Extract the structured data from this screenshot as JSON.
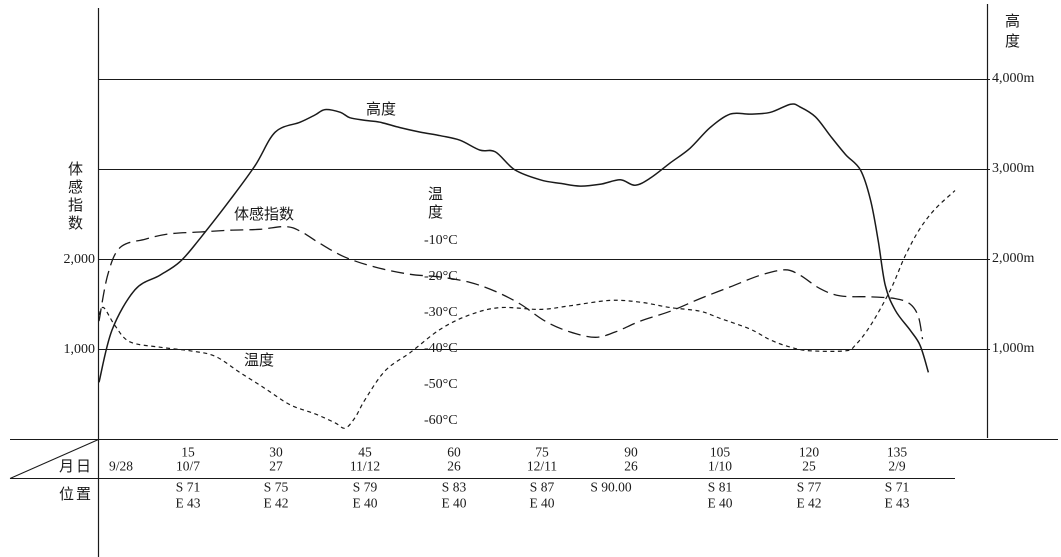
{
  "colors": {
    "ink": "#1a1a1a",
    "background": "#ffffff"
  },
  "chart_data": {
    "type": "line",
    "xlim": [
      0,
      150
    ],
    "axes": {
      "left": {
        "label": "体感指数",
        "ylim": [
          0,
          4800
        ],
        "ticks": [
          {
            "value": 2000,
            "label": "2,000"
          },
          {
            "value": 1000,
            "label": "1,000"
          }
        ]
      },
      "right": {
        "label": "高度",
        "ylim": [
          0,
          4800
        ],
        "grid": true,
        "ticks": [
          {
            "value": 4000,
            "label": "4,000m"
          },
          {
            "value": 3000,
            "label": "3,000m"
          },
          {
            "value": 2000,
            "label": "2,000m"
          },
          {
            "value": 1000,
            "label": "1,000m"
          }
        ]
      },
      "temperature": {
        "label": "温度",
        "ylim": [
          -65,
          55
        ],
        "ticks": [
          {
            "value": -10,
            "label": "-10°C"
          },
          {
            "value": -20,
            "label": "-20°C"
          },
          {
            "value": -30,
            "label": "-30°C"
          },
          {
            "value": -40,
            "label": "-40°C"
          },
          {
            "value": -50,
            "label": "-50°C"
          },
          {
            "value": -60,
            "label": "-60°C"
          }
        ]
      }
    },
    "series": [
      {
        "name": "高度",
        "axis": "right",
        "line": "solid",
        "points": [
          [
            0,
            630
          ],
          [
            2.2,
            1210
          ],
          [
            6.1,
            1660
          ],
          [
            10.3,
            1820
          ],
          [
            13.7,
            1970
          ],
          [
            17.1,
            2230
          ],
          [
            22.2,
            2660
          ],
          [
            26.4,
            3040
          ],
          [
            29.8,
            3410
          ],
          [
            34.0,
            3520
          ],
          [
            36.5,
            3600
          ],
          [
            38.2,
            3660
          ],
          [
            40.8,
            3630
          ],
          [
            42.4,
            3570
          ],
          [
            45.0,
            3540
          ],
          [
            47.5,
            3520
          ],
          [
            50.9,
            3460
          ],
          [
            54.3,
            3410
          ],
          [
            57.7,
            3370
          ],
          [
            61.0,
            3320
          ],
          [
            64.4,
            3210
          ],
          [
            67.0,
            3190
          ],
          [
            70.3,
            2990
          ],
          [
            74.6,
            2880
          ],
          [
            78.0,
            2840
          ],
          [
            81.3,
            2810
          ],
          [
            84.7,
            2830
          ],
          [
            88.1,
            2880
          ],
          [
            90.6,
            2820
          ],
          [
            93.2,
            2900
          ],
          [
            96.6,
            3070
          ],
          [
            99.9,
            3230
          ],
          [
            103.3,
            3460
          ],
          [
            106.7,
            3610
          ],
          [
            110.1,
            3610
          ],
          [
            113.5,
            3630
          ],
          [
            116.9,
            3720
          ],
          [
            118.5,
            3690
          ],
          [
            121.1,
            3580
          ],
          [
            123.6,
            3370
          ],
          [
            126.2,
            3160
          ],
          [
            128.7,
            2990
          ],
          [
            130.4,
            2660
          ],
          [
            131.7,
            2210
          ],
          [
            132.9,
            1710
          ],
          [
            134.6,
            1430
          ],
          [
            137.1,
            1210
          ],
          [
            138.8,
            1040
          ],
          [
            140.2,
            740
          ]
        ]
      },
      {
        "name": "体感指数",
        "axis": "left",
        "line": "long-dash",
        "points": [
          [
            0,
            1310
          ],
          [
            1.5,
            1830
          ],
          [
            3.6,
            2130
          ],
          [
            7.8,
            2220
          ],
          [
            12.0,
            2280
          ],
          [
            17.1,
            2300
          ],
          [
            22.2,
            2320
          ],
          [
            27.2,
            2330
          ],
          [
            31.5,
            2360
          ],
          [
            34.0,
            2310
          ],
          [
            37.4,
            2170
          ],
          [
            41.6,
            2020
          ],
          [
            46.7,
            1910
          ],
          [
            52.6,
            1830
          ],
          [
            57.7,
            1800
          ],
          [
            62.7,
            1740
          ],
          [
            67.0,
            1640
          ],
          [
            71.2,
            1500
          ],
          [
            75.4,
            1310
          ],
          [
            79.6,
            1190
          ],
          [
            83.9,
            1130
          ],
          [
            87.3,
            1190
          ],
          [
            91.5,
            1310
          ],
          [
            96.6,
            1420
          ],
          [
            101.6,
            1560
          ],
          [
            106.7,
            1690
          ],
          [
            111.8,
            1820
          ],
          [
            116.0,
            1880
          ],
          [
            118.5,
            1820
          ],
          [
            121.9,
            1670
          ],
          [
            125.3,
            1590
          ],
          [
            130.4,
            1580
          ],
          [
            134.6,
            1560
          ],
          [
            137.1,
            1500
          ],
          [
            138.5,
            1360
          ],
          [
            139.2,
            1110
          ]
        ]
      },
      {
        "name": "温度",
        "axis": "temperature",
        "line": "short-dash",
        "points": [
          [
            0,
            -30.5
          ],
          [
            0.8,
            -28.5
          ],
          [
            2.7,
            -33.5
          ],
          [
            5.2,
            -38
          ],
          [
            10.3,
            -39.5
          ],
          [
            15.4,
            -40.5
          ],
          [
            19.6,
            -42
          ],
          [
            23.8,
            -46.5
          ],
          [
            28.1,
            -51
          ],
          [
            32.3,
            -55.5
          ],
          [
            36.5,
            -58
          ],
          [
            39.9,
            -60.5
          ],
          [
            41.6,
            -62
          ],
          [
            43.3,
            -59
          ],
          [
            45.0,
            -54
          ],
          [
            48.4,
            -46
          ],
          [
            52.6,
            -41
          ],
          [
            57.7,
            -34.5
          ],
          [
            62.7,
            -30.5
          ],
          [
            67.8,
            -28.5
          ],
          [
            74.6,
            -29
          ],
          [
            79.6,
            -28
          ],
          [
            86.4,
            -26.5
          ],
          [
            91.5,
            -27
          ],
          [
            96.6,
            -28.5
          ],
          [
            101.6,
            -29.5
          ],
          [
            105.0,
            -31.5
          ],
          [
            110.1,
            -34.5
          ],
          [
            113.5,
            -37.5
          ],
          [
            116.9,
            -39.5
          ],
          [
            120.2,
            -40.5
          ],
          [
            126.2,
            -40.5
          ],
          [
            127.8,
            -39
          ],
          [
            130.4,
            -33.5
          ],
          [
            133.8,
            -23.5
          ],
          [
            136.3,
            -14
          ],
          [
            138.8,
            -6.5
          ],
          [
            141.4,
            -1
          ],
          [
            144.7,
            4
          ]
        ]
      }
    ]
  },
  "table": {
    "row_labels": {
      "date": "月日",
      "position": "位置"
    },
    "columns": [
      {
        "date": "9/28"
      },
      {
        "day": "15",
        "date": "10/7",
        "lat": "S 71",
        "lon": "E 43"
      },
      {
        "day": "30",
        "date": "27",
        "lat": "S 75",
        "lon": "E 42"
      },
      {
        "day": "45",
        "date": "11/12",
        "lat": "S 79",
        "lon": "E 40"
      },
      {
        "day": "60",
        "date": "26",
        "lat": "S 83",
        "lon": "E 40"
      },
      {
        "day": "75",
        "date": "12/11",
        "lat": "S 87",
        "lon": "E 40"
      },
      {
        "day": "90",
        "date": "26",
        "lat": "S 90.00"
      },
      {
        "day": "105",
        "date": "1/10",
        "lat": "S 81",
        "lon": "E 40"
      },
      {
        "day": "120",
        "date": "25",
        "lat": "S 77",
        "lon": "E 42"
      },
      {
        "day": "135",
        "date": "2/9",
        "lat": "S 71",
        "lon": "E 43"
      }
    ]
  }
}
